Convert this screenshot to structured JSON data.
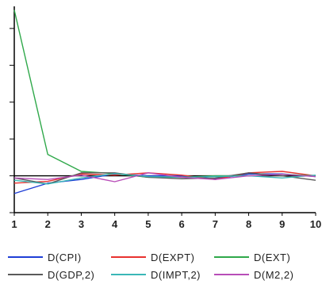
{
  "chart_data": {
    "type": "line",
    "title": "",
    "xlabel": "",
    "ylabel": "",
    "x": [
      1,
      2,
      3,
      4,
      5,
      6,
      7,
      8,
      9,
      10
    ],
    "xlim": [
      1,
      10
    ],
    "ylim": [
      -1,
      4.6
    ],
    "y_ticks": [
      -1,
      0,
      1,
      2,
      3,
      4
    ],
    "zero_line": true,
    "grid": false,
    "legend_position": "bottom",
    "series": [
      {
        "name": "D(CPI)",
        "color": "#1f3fd6",
        "values": [
          -0.48,
          -0.2,
          -0.1,
          0.05,
          0.0,
          0.0,
          -0.08,
          0.05,
          0.05,
          -0.02
        ]
      },
      {
        "name": "D(EXPT)",
        "color": "#e8322f",
        "values": [
          -0.2,
          -0.15,
          0.05,
          0.02,
          0.08,
          0.02,
          -0.1,
          0.08,
          0.12,
          0.0
        ]
      },
      {
        "name": "D(EXT)",
        "color": "#2fa84a",
        "values": [
          4.5,
          0.58,
          0.12,
          0.06,
          -0.04,
          -0.04,
          0.0,
          0.0,
          0.04,
          0.0
        ]
      },
      {
        "name": "D(GDP,2)",
        "color": "#5a5a5a",
        "values": [
          -0.06,
          -0.22,
          0.08,
          0.08,
          -0.04,
          -0.08,
          -0.06,
          0.08,
          0.0,
          -0.12
        ]
      },
      {
        "name": "D(IMPT,2)",
        "color": "#3ab7b7",
        "values": [
          -0.12,
          -0.22,
          -0.06,
          0.06,
          -0.02,
          -0.04,
          -0.02,
          0.0,
          -0.06,
          0.02
        ]
      },
      {
        "name": "D(M2,2)",
        "color": "#b84db8",
        "values": [
          -0.06,
          -0.1,
          0.02,
          -0.16,
          0.08,
          -0.04,
          -0.1,
          0.0,
          0.04,
          -0.02
        ]
      }
    ]
  }
}
